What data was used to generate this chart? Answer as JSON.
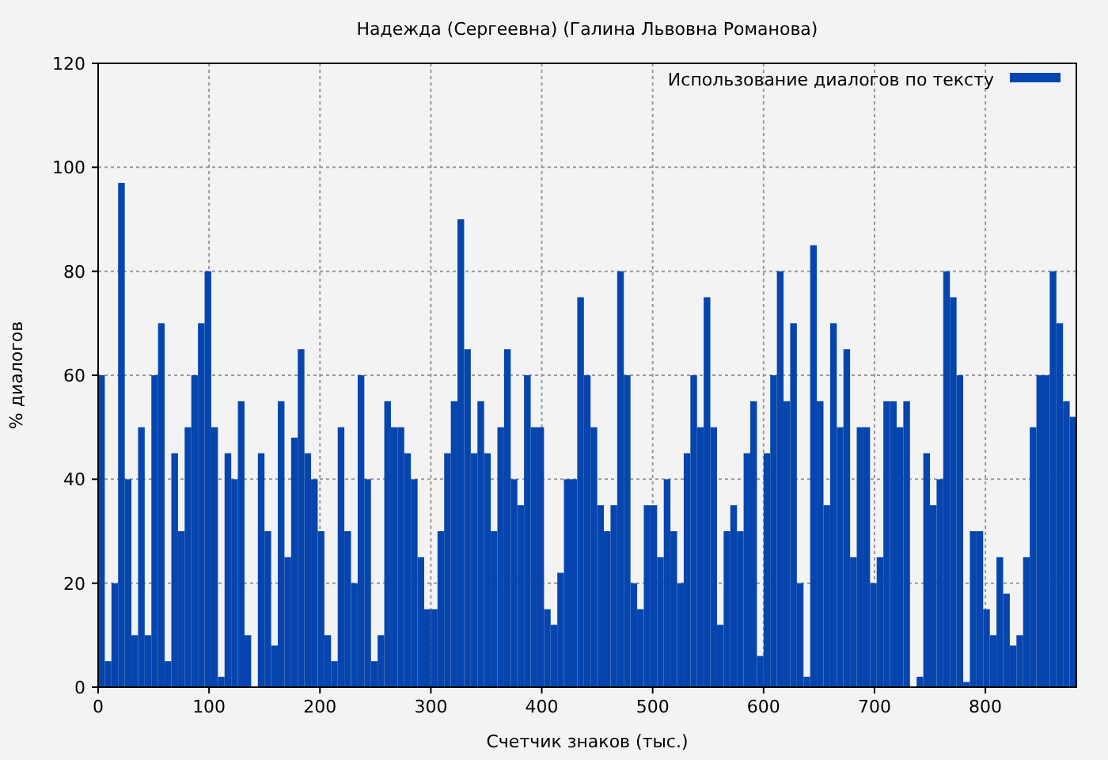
{
  "chart_data": {
    "type": "histogram",
    "title": "Надежда (Сергеевна) (Галина Львовна Романова)",
    "xlabel": "Счетчик знаков (тыс.)",
    "ylabel": "% диалогов",
    "bins": [
      0,
      6,
      12,
      18,
      24,
      30,
      36,
      42,
      48,
      54,
      60,
      66,
      72,
      78,
      84,
      90,
      96,
      102,
      108,
      114,
      120,
      126,
      132,
      138,
      144,
      150,
      156,
      162,
      168,
      174,
      180,
      186,
      192,
      198,
      204,
      210,
      216,
      222,
      228,
      234,
      240,
      246,
      252,
      258,
      264,
      270,
      276,
      282,
      288,
      294,
      300,
      306,
      312,
      318,
      324,
      330,
      336,
      342,
      348,
      354,
      360,
      366,
      372,
      378,
      384,
      390,
      396,
      402,
      408,
      414,
      420,
      426,
      432,
      438,
      444,
      450,
      456,
      462,
      468,
      474,
      480,
      486,
      492,
      498,
      504,
      510,
      516,
      522,
      528,
      534,
      540,
      546,
      552,
      558,
      564,
      570,
      576,
      582,
      588,
      594,
      600,
      606,
      612,
      618,
      624,
      630,
      636,
      642,
      648,
      654,
      660,
      666,
      672,
      678,
      684,
      690,
      696,
      702,
      708,
      714,
      720,
      726,
      732,
      738,
      744,
      750,
      756,
      762,
      768,
      774,
      780,
      786,
      792,
      798,
      804,
      810,
      816,
      822,
      828,
      834,
      840,
      846,
      852,
      858,
      864,
      870,
      876,
      882
    ],
    "series": [
      {
        "name": "Использование диалогов по тексту",
        "color": "#0645ad",
        "values": [
          60,
          5,
          20,
          97,
          40,
          10,
          50,
          10,
          60,
          70,
          5,
          45,
          30,
          50,
          60,
          70,
          80,
          50,
          2,
          45,
          40,
          55,
          10,
          0,
          45,
          30,
          8,
          55,
          25,
          48,
          65,
          45,
          40,
          30,
          10,
          5,
          50,
          30,
          20,
          60,
          40,
          5,
          10,
          55,
          50,
          50,
          45,
          40,
          25,
          15,
          15,
          30,
          45,
          55,
          90,
          65,
          45,
          55,
          45,
          30,
          50,
          65,
          40,
          35,
          60,
          50,
          50,
          15,
          12,
          22,
          40,
          40,
          75,
          60,
          50,
          35,
          30,
          35,
          80,
          60,
          20,
          15,
          35,
          35,
          25,
          40,
          30,
          20,
          45,
          60,
          50,
          75,
          50,
          12,
          30,
          35,
          30,
          45,
          55,
          6,
          45,
          60,
          80,
          55,
          70,
          20,
          2,
          85,
          55,
          35,
          70,
          50,
          65,
          25,
          50,
          50,
          20,
          25,
          55,
          55,
          50,
          55,
          0,
          2,
          45,
          35,
          40,
          80,
          75,
          60,
          1,
          30,
          30,
          15,
          10,
          25,
          18,
          8,
          10,
          25,
          50,
          60,
          60,
          80,
          70,
          55,
          52
        ]
      }
    ],
    "xlim": [
      0,
      882
    ],
    "ylim": [
      0,
      120
    ],
    "xticks": [
      0,
      100,
      200,
      300,
      400,
      500,
      600,
      700,
      800
    ],
    "yticks": [
      0,
      20,
      40,
      60,
      80,
      100,
      120
    ],
    "grid": true,
    "legend": "top right"
  }
}
